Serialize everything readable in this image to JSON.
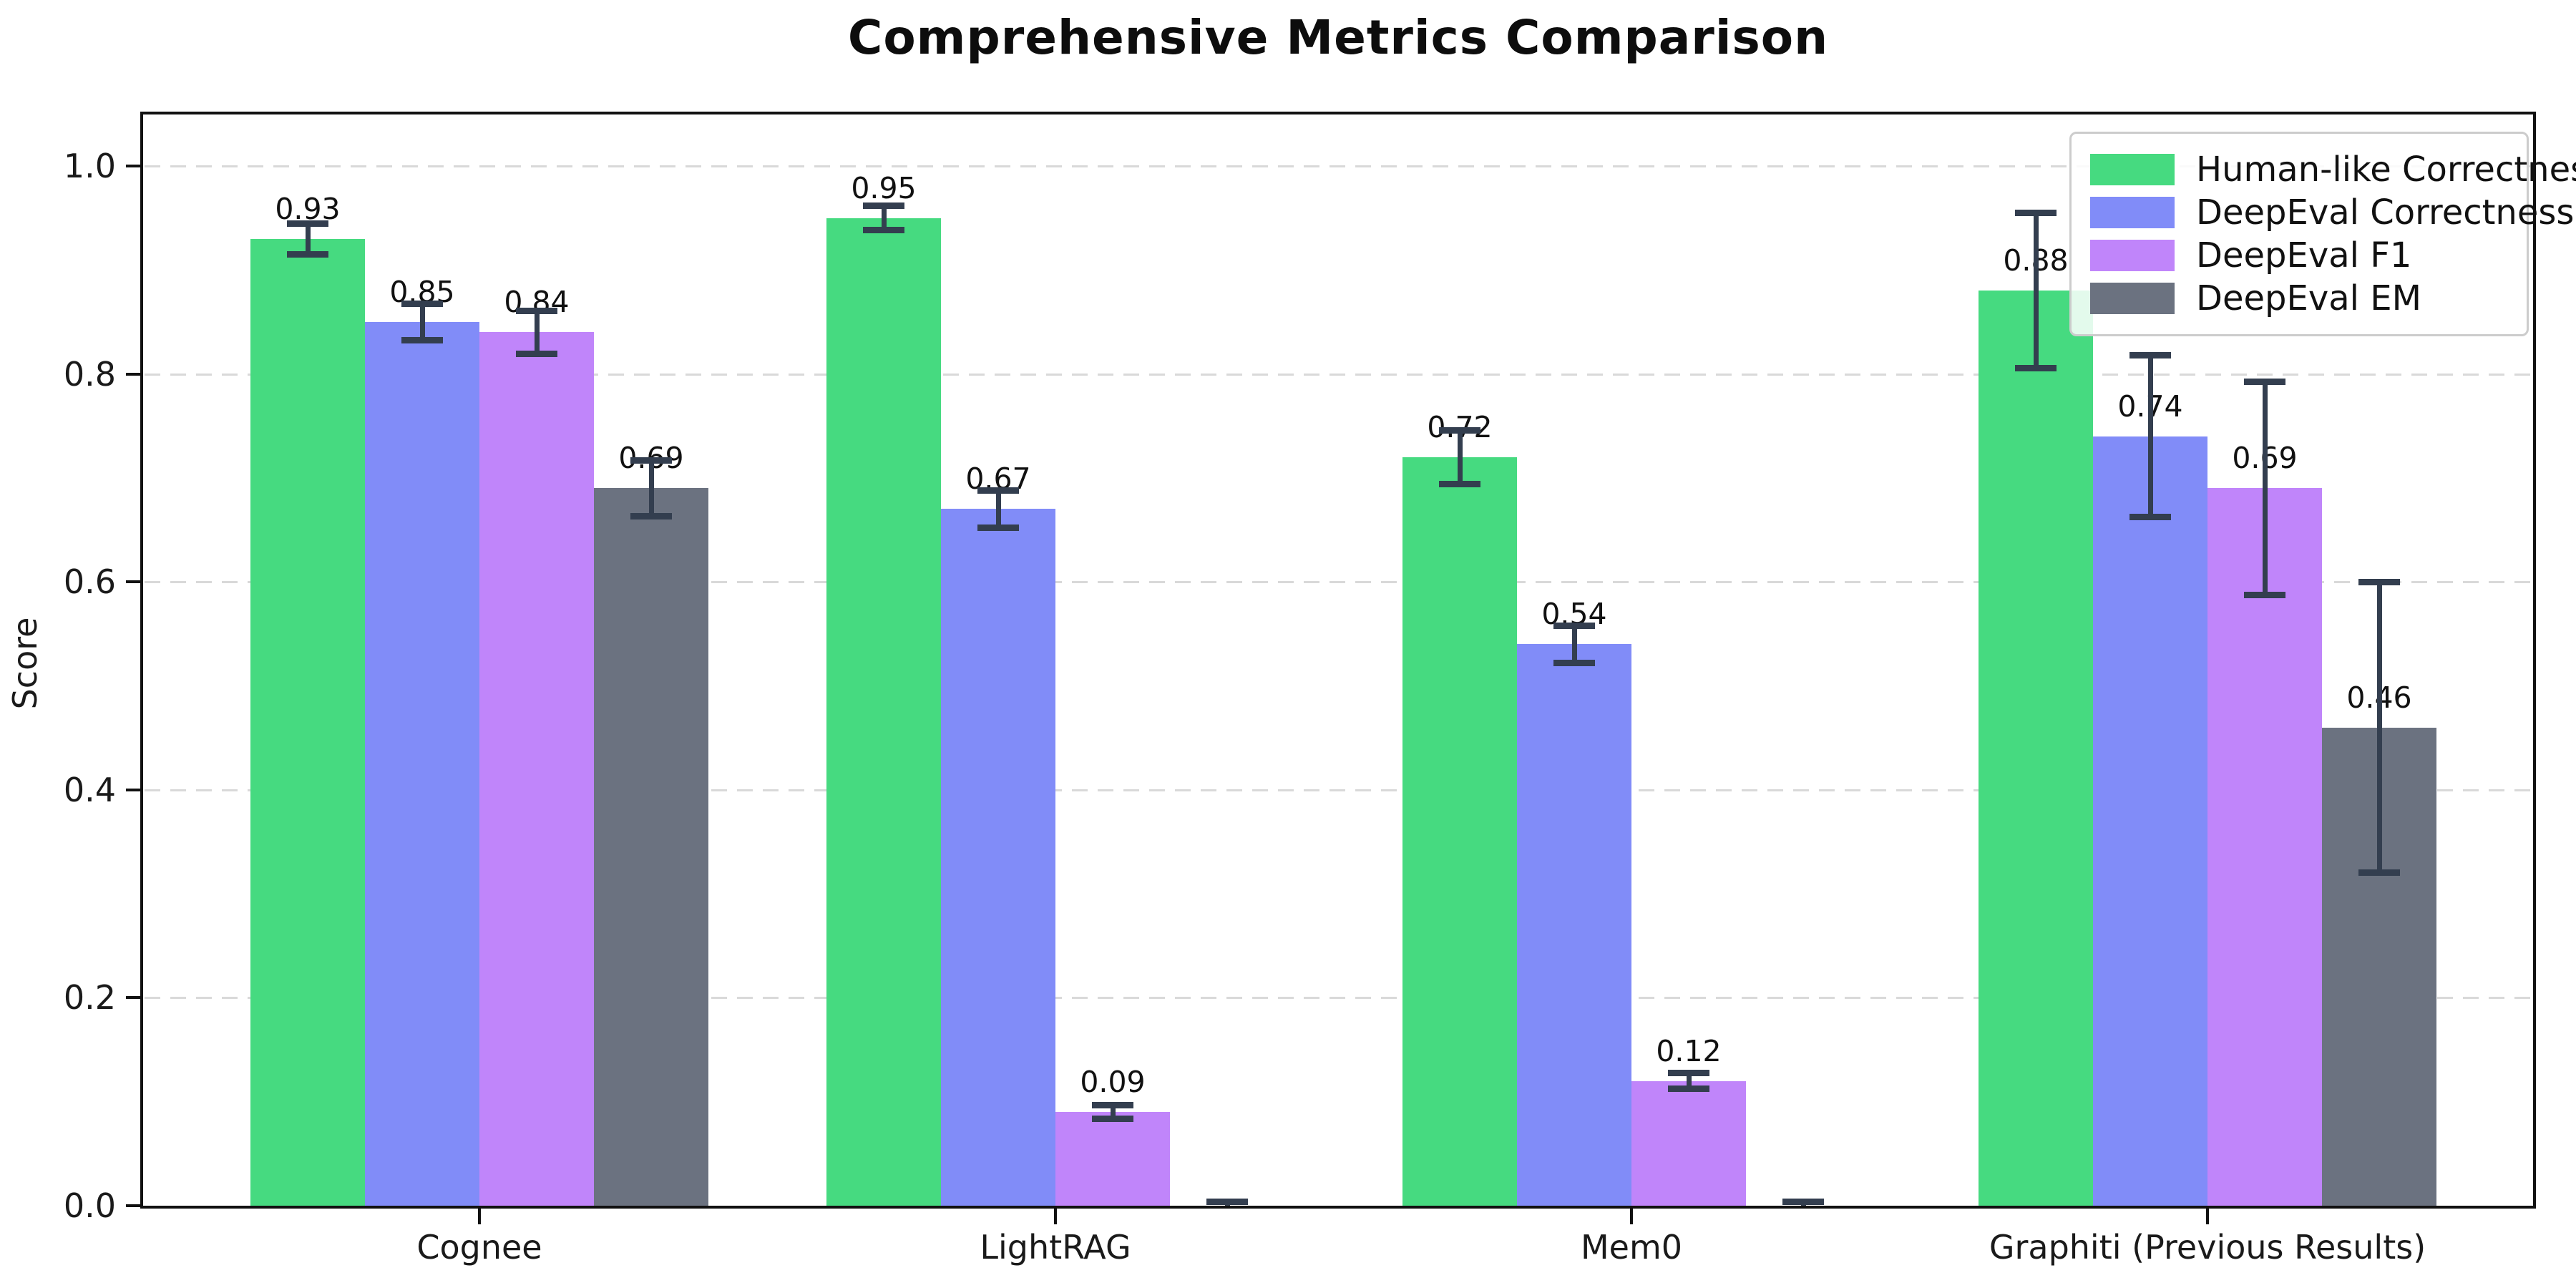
{
  "title": "Comprehensive Metrics Comparison",
  "chart_data": {
    "type": "bar",
    "title": "Comprehensive Metrics Comparison",
    "xlabel": "",
    "ylabel": "Score",
    "ylim": [
      0,
      1.05
    ],
    "yticks": [
      "0.0",
      "0.2",
      "0.4",
      "0.6",
      "0.8",
      "1.0"
    ],
    "ytick_values": [
      0.0,
      0.2,
      0.4,
      0.6,
      0.8,
      1.0
    ],
    "grid": "horizontal-dashed",
    "legend_position": "upper right",
    "categories": [
      "Cognee",
      "LightRAG",
      "Mem0",
      "Graphiti (Previous Results)"
    ],
    "series": [
      {
        "name": "Human-like Correctness",
        "color": "#46da80",
        "values": [
          0.93,
          0.95,
          0.72,
          0.88
        ],
        "errors": [
          0.015,
          0.012,
          0.026,
          0.075
        ],
        "labels": [
          "0.93",
          "0.95",
          "0.72",
          "0.88"
        ]
      },
      {
        "name": "DeepEval Correctness",
        "color": "#818cf8",
        "values": [
          0.85,
          0.67,
          0.54,
          0.74
        ],
        "errors": [
          0.018,
          0.018,
          0.018,
          0.078
        ],
        "labels": [
          "0.85",
          "0.67",
          "0.54",
          "0.74"
        ]
      },
      {
        "name": "DeepEval F1",
        "color": "#c085fa",
        "values": [
          0.84,
          0.09,
          0.12,
          0.69
        ],
        "errors": [
          0.021,
          0.007,
          0.008,
          0.103
        ],
        "labels": [
          "0.84",
          "0.09",
          "0.12",
          "0.69"
        ]
      },
      {
        "name": "DeepEval EM",
        "color": "#6b7280",
        "values": [
          0.69,
          0.0,
          0.0,
          0.46
        ],
        "errors": [
          0.027,
          0.004,
          0.004,
          0.14
        ],
        "labels": [
          "0.69",
          null,
          null,
          "0.46"
        ]
      }
    ],
    "colors": {
      "error_bar": "#333e4f",
      "grid": "#d9d9d9",
      "spine": "#111111",
      "background": "#ffffff"
    }
  }
}
